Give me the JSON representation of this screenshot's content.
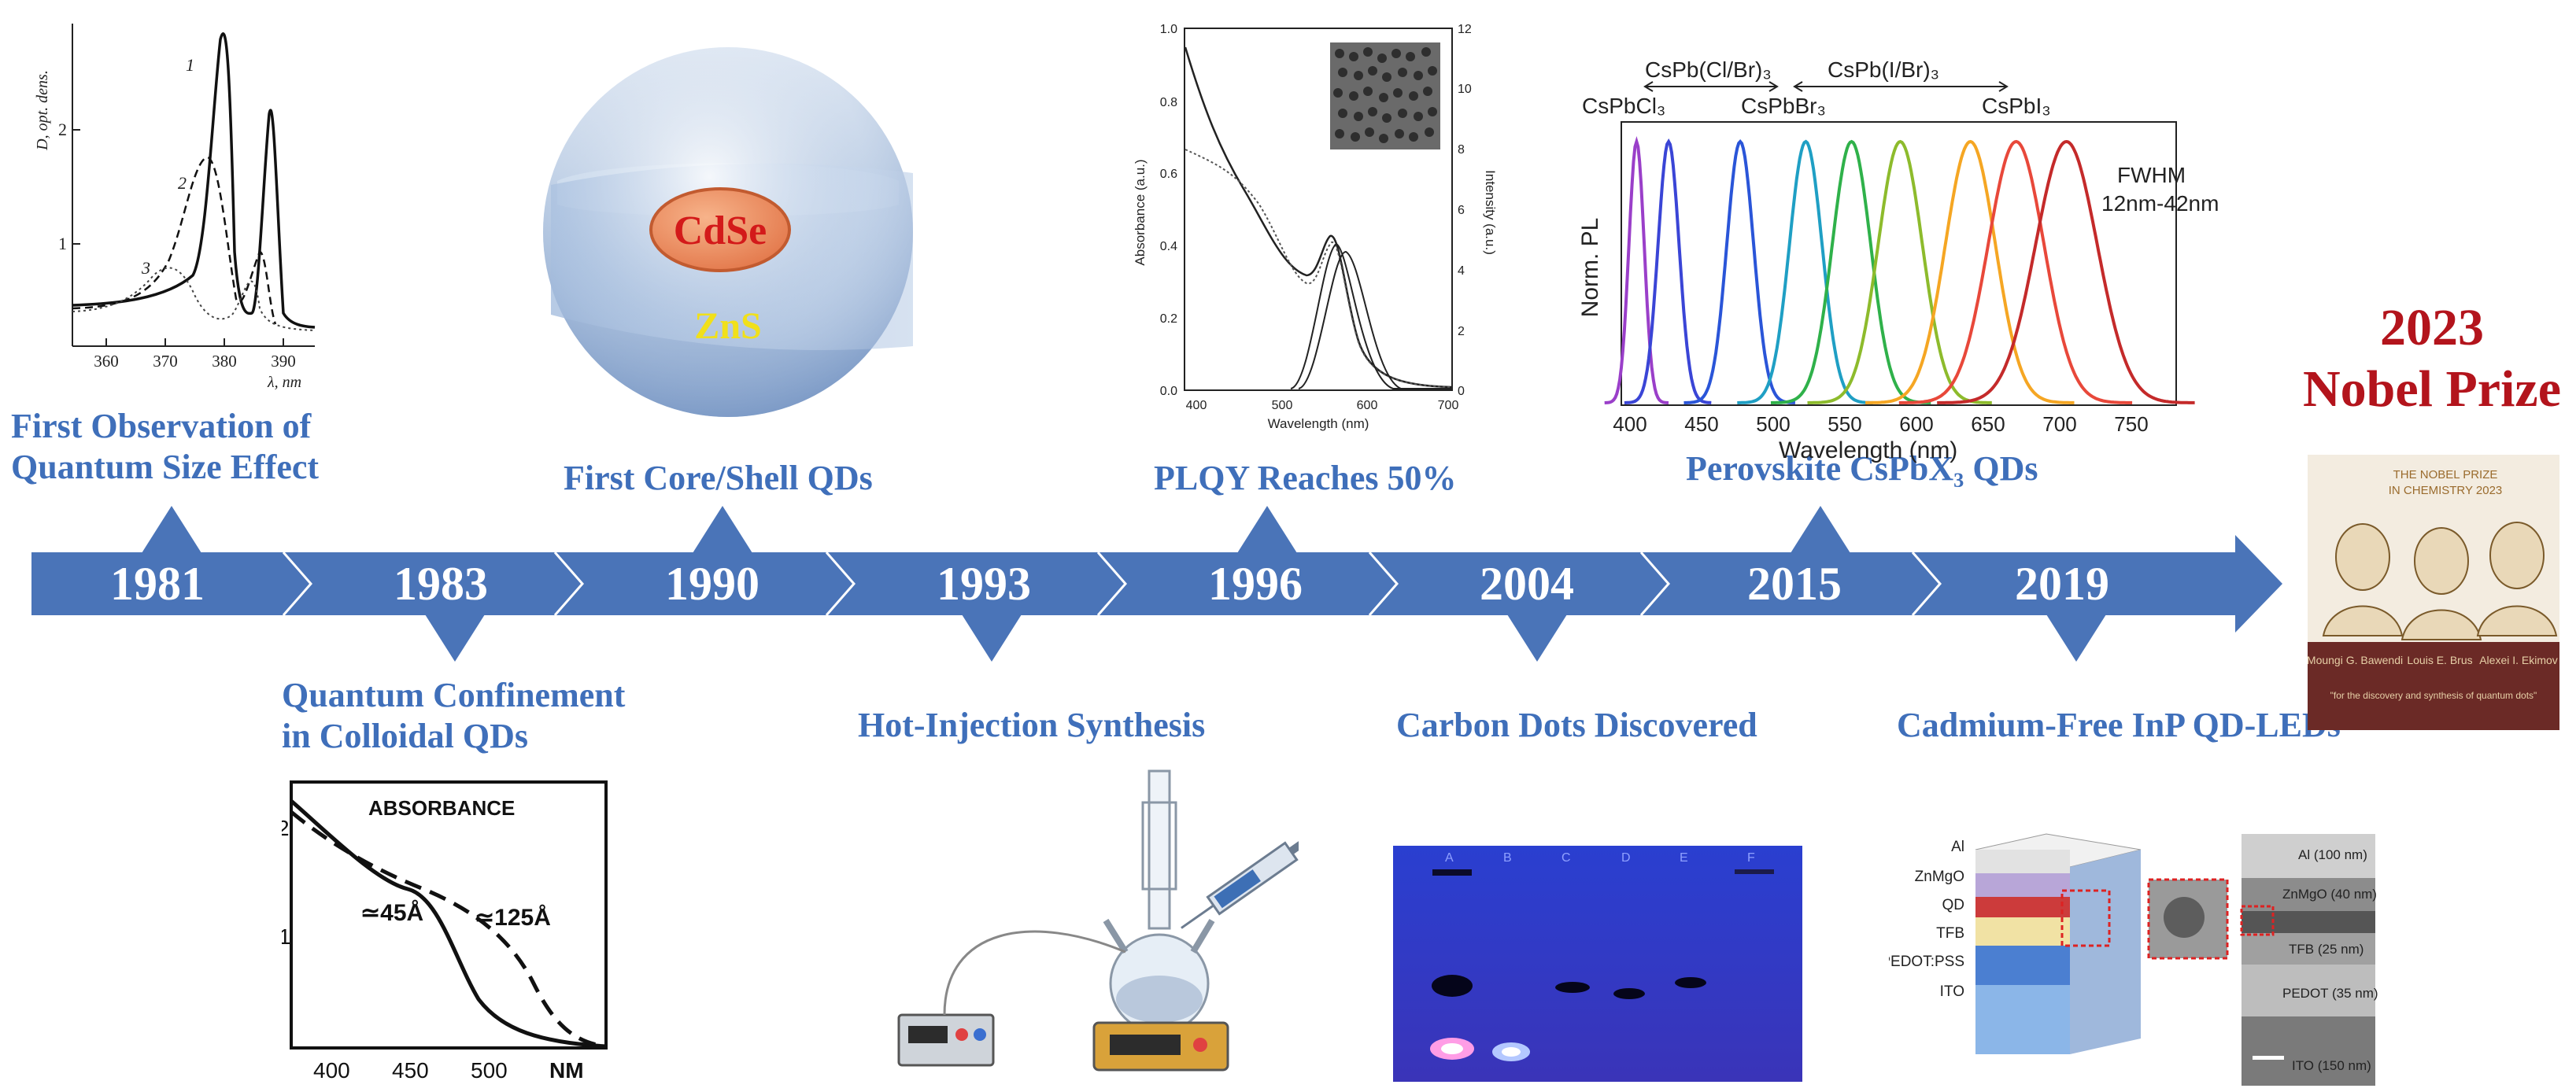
{
  "timeline": {
    "years": [
      "1981",
      "1983",
      "1990",
      "1993",
      "1996",
      "2004",
      "2015",
      "2019"
    ],
    "colors": {
      "arrow": "#4a74b8",
      "caption": "#3f6fba",
      "nobel": "#b3141c"
    }
  },
  "events": {
    "e1981": {
      "line1": "First Observation of",
      "line2": "Quantum Size Effect"
    },
    "e1983": {
      "line1": "Quantum Confinement",
      "line2": "in Colloidal QDs"
    },
    "e1990": {
      "label": "First Core/Shell QDs"
    },
    "e1993": {
      "label": "Hot-Injection Synthesis"
    },
    "e1996": {
      "label": "PLQY Reaches 50%"
    },
    "e2004": {
      "label": "Carbon Dots Discovered"
    },
    "e2015": {
      "label": "Perovskite CsPbX₃ QDs"
    },
    "e2019": {
      "label": "Cadmium-Free InP QD-LEDs"
    }
  },
  "nobel": {
    "year": "2023",
    "title": "Nobel Prize"
  },
  "fig1981": {
    "ylabel": "D, opt. dens.",
    "xlabel": "λ, nm",
    "xticks": [
      "360",
      "370",
      "380",
      "390"
    ],
    "yticks": [
      "1",
      "2"
    ],
    "curve_labels": [
      "1",
      "2",
      "3"
    ]
  },
  "fig1983": {
    "title": "ABSORBANCE",
    "xticks": [
      "400",
      "450",
      "500"
    ],
    "xunit": "NM",
    "yticks": [
      "1",
      "2"
    ],
    "label_a": "≃45Å",
    "label_b": "≃125Å"
  },
  "fig1990": {
    "core": "CdSe",
    "shell": "ZnS"
  },
  "fig1996": {
    "xlabel": "Wavelength (nm)",
    "ylabel_left": "Absorbance (a.u.)",
    "ylabel_right": "Intensity (a.u.)",
    "xticks": [
      "400",
      "500",
      "600",
      "700"
    ],
    "yticks_left": [
      "0.0",
      "0.2",
      "0.4",
      "0.6",
      "0.8",
      "1.0"
    ],
    "yticks_right": [
      "0",
      "2",
      "4",
      "6",
      "8",
      "10",
      "12"
    ]
  },
  "fig2015": {
    "ylabel": "Norm. PL",
    "xlabel": "Wavelength (nm)",
    "xticks": [
      "400",
      "450",
      "500",
      "550",
      "600",
      "650",
      "700",
      "750"
    ],
    "labels": [
      "CsPbCl₃",
      "CsPb(Cl/Br)₃",
      "CsPbBr₃",
      "CsPb(I/Br)₃",
      "CsPbI₃"
    ],
    "fwhm_title": "FWHM",
    "fwhm_value": "12nm-42nm",
    "peaks": [
      404,
      425,
      472,
      515,
      545,
      577,
      623,
      653,
      686
    ],
    "peak_colors": [
      "#9a3fc9",
      "#3a45d6",
      "#2a55d8",
      "#1f9fc4",
      "#2fb14a",
      "#8dbb2c",
      "#f5a623",
      "#e8483a",
      "#c42a2a"
    ]
  },
  "fig2004": {
    "lanes": [
      "A",
      "B",
      "C",
      "D",
      "E",
      "F"
    ]
  },
  "fig2019": {
    "layers": [
      "Al",
      "ZnMgO",
      "QD",
      "TFB",
      "PEDOT:PSS",
      "ITO"
    ],
    "tem_labels": [
      "Al (100 nm)",
      "ZnMgO (40 nm)",
      "TFB (25 nm)",
      "PEDOT (35 nm)",
      "ITO (150 nm)"
    ]
  },
  "nobel_card": {
    "line1": "THE NOBEL PRIZE",
    "line2": "IN CHEMISTRY 2023",
    "names": [
      "Moungi G. Bawendi",
      "Louis E. Brus",
      "Alexei I. Ekimov"
    ],
    "quote": "\"for the discovery and synthesis of quantum dots\""
  }
}
